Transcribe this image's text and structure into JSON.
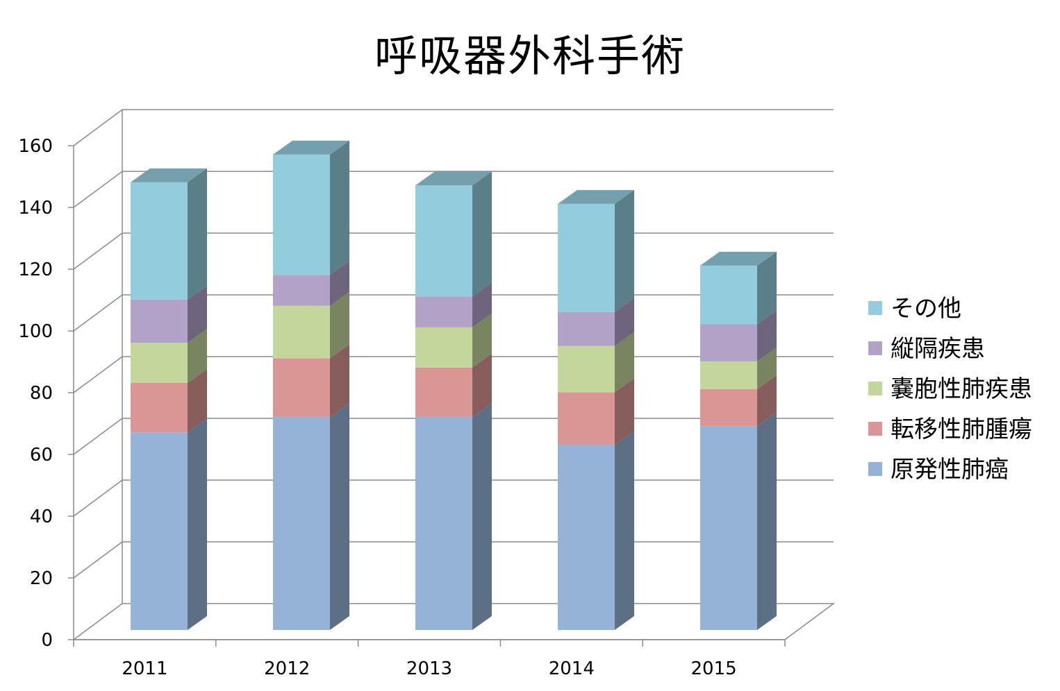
{
  "chart_data": {
    "type": "bar",
    "stacked": true,
    "three_d": true,
    "title": "呼吸器外科手術",
    "xlabel": "",
    "ylabel": "",
    "categories": [
      "2011",
      "2012",
      "2013",
      "2014",
      "2015"
    ],
    "ylim": [
      0,
      160
    ],
    "yticks": [
      "0",
      "20",
      "40",
      "60",
      "80",
      "100",
      "120",
      "140",
      "160"
    ],
    "grid": true,
    "legend_position": "right",
    "series": [
      {
        "name": "原発性肺癌",
        "color": "#95B3D7",
        "values": [
          64,
          69,
          69,
          60,
          66
        ]
      },
      {
        "name": "転移性肺腫瘍",
        "color": "#D99694",
        "values": [
          16,
          19,
          16,
          17,
          12
        ]
      },
      {
        "name": "嚢胞性肺疾患",
        "color": "#C3D69B",
        "values": [
          13,
          17,
          13,
          15,
          9
        ]
      },
      {
        "name": "縦隔疾患",
        "color": "#B2A2C7",
        "values": [
          14,
          10,
          10,
          11,
          12
        ]
      },
      {
        "name": "その他",
        "color": "#93CDDD",
        "values": [
          38,
          39,
          36,
          35,
          19
        ]
      }
    ],
    "legend_order": [
      "その他",
      "縦隔疾患",
      "嚢胞性肺疾患",
      "転移性肺腫瘍",
      "原発性肺癌"
    ]
  }
}
